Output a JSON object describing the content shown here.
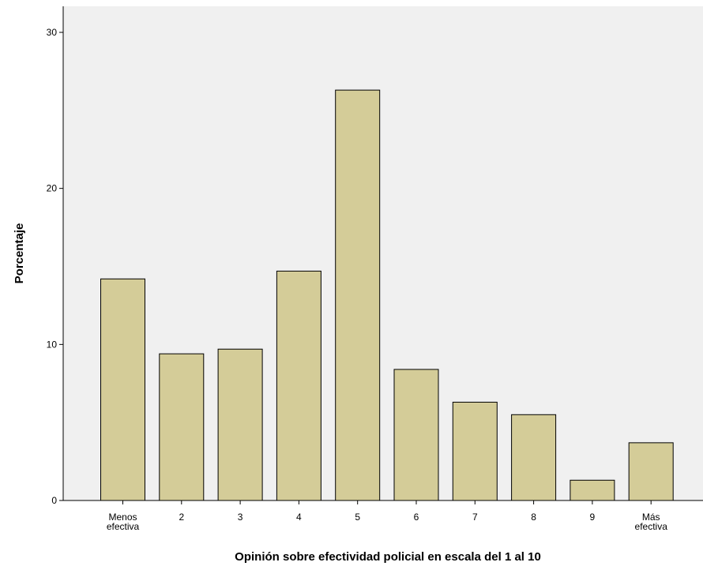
{
  "chart_data": {
    "type": "bar",
    "title": "",
    "xlabel": "Opinión sobre efectividad policial en escala del 1 al 10",
    "ylabel": "Porcentaje",
    "ylim": [
      0,
      30
    ],
    "yticks": [
      0,
      10,
      20,
      30
    ],
    "grid": false,
    "categories": [
      [
        "Menos",
        "efectiva"
      ],
      [
        "2"
      ],
      [
        "3"
      ],
      [
        "4"
      ],
      [
        "5"
      ],
      [
        "6"
      ],
      [
        "7"
      ],
      [
        "8"
      ],
      [
        "9"
      ],
      [
        "Más",
        "efectiva"
      ]
    ],
    "values": [
      14.2,
      9.4,
      9.7,
      14.7,
      26.3,
      8.4,
      6.3,
      5.5,
      1.3,
      3.7
    ],
    "colors": {
      "bar_fill": "#d4cc98",
      "bar_stroke": "#000000",
      "plot_background": "#f0f0f0"
    }
  }
}
